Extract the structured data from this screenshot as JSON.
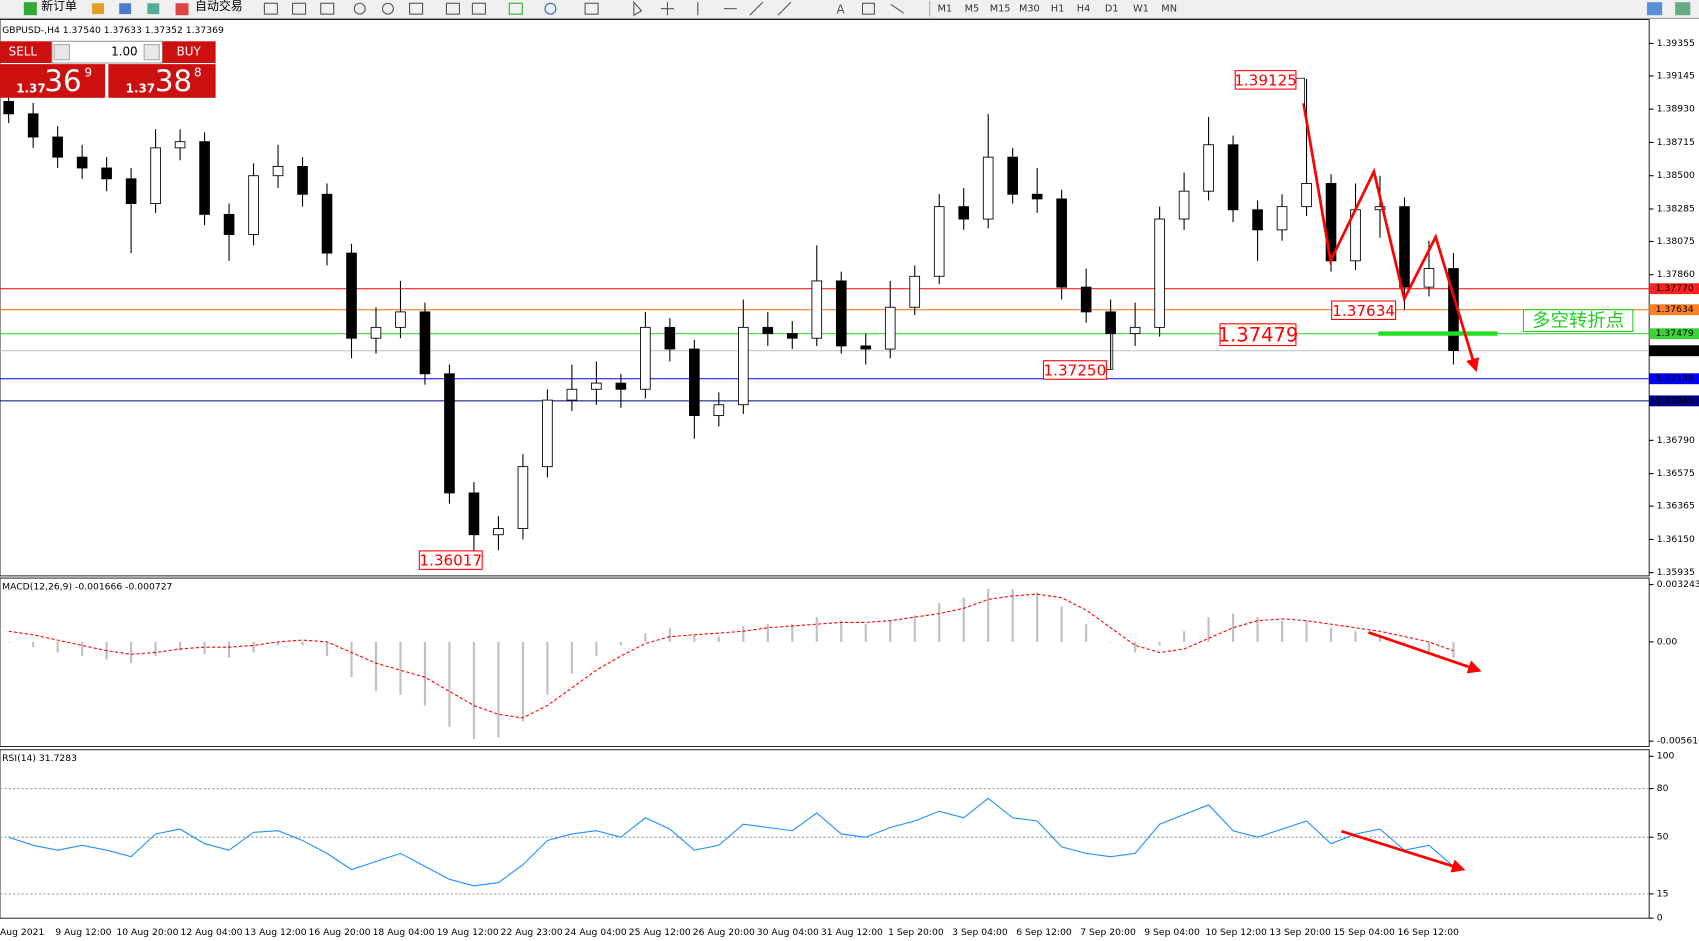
{
  "toolbar": {
    "new_order": "新订单",
    "auto_trading": "自动交易",
    "timeframes": [
      "M1",
      "M5",
      "M15",
      "M30",
      "H1",
      "H4",
      "D1",
      "W1",
      "MN"
    ]
  },
  "trade_panel": {
    "sell": "SELL",
    "lots": "1.00",
    "buy": "BUY",
    "sell_price": {
      "big": "1.37",
      "main": "36",
      "pip": "9"
    },
    "buy_price": {
      "big": "1.37",
      "main": "38",
      "pip": "8"
    }
  },
  "time_axis": [
    "Aug 2021",
    "9 Aug 12:00",
    "10 Aug 20:00",
    "12 Aug 04:00",
    "13 Aug 12:00",
    "16 Aug 20:00",
    "18 Aug 04:00",
    "19 Aug 12:00",
    "22 Aug 23:00",
    "24 Aug 04:00",
    "25 Aug 12:00",
    "26 Aug 20:00",
    "30 Aug 04:00",
    "31 Aug 12:00",
    "1 Sep 20:00",
    "3 Sep 04:00",
    "6 Sep 12:00",
    "7 Sep 20:00",
    "9 Sep 04:00",
    "10 Sep 12:00",
    "13 Sep 20:00",
    "15 Sep 04:00",
    "16 Sep 12:00"
  ],
  "chart_data": [
    {
      "type": "candlestick",
      "title": "GBPUSD-,H4  1.37540 1.37633 1.37352 1.37369",
      "candles": [
        [
          1.3898,
          1.3905,
          1.3884,
          1.389
        ],
        [
          1.389,
          1.3897,
          1.3868,
          1.3875
        ],
        [
          1.3875,
          1.3882,
          1.3855,
          1.3862
        ],
        [
          1.3862,
          1.387,
          1.3848,
          1.3855
        ],
        [
          1.3855,
          1.3862,
          1.384,
          1.3848
        ],
        [
          1.3848,
          1.3855,
          1.38,
          1.3832
        ],
        [
          1.3832,
          1.388,
          1.3826,
          1.3868
        ],
        [
          1.3868,
          1.388,
          1.386,
          1.3872
        ],
        [
          1.3872,
          1.3878,
          1.3818,
          1.3825
        ],
        [
          1.3825,
          1.3832,
          1.3795,
          1.3812
        ],
        [
          1.3812,
          1.3858,
          1.3805,
          1.385
        ],
        [
          1.385,
          1.387,
          1.3842,
          1.3856
        ],
        [
          1.3856,
          1.3862,
          1.383,
          1.3838
        ],
        [
          1.3838,
          1.3845,
          1.3792,
          1.38
        ],
        [
          1.38,
          1.3806,
          1.3732,
          1.3745
        ],
        [
          1.3745,
          1.3765,
          1.3735,
          1.3752
        ],
        [
          1.3752,
          1.3782,
          1.3745,
          1.3762
        ],
        [
          1.3762,
          1.3768,
          1.3715,
          1.3722
        ],
        [
          1.3722,
          1.3728,
          1.3638,
          1.3645
        ],
        [
          1.3645,
          1.3652,
          1.36017,
          1.3618
        ],
        [
          1.3618,
          1.363,
          1.3608,
          1.3622
        ],
        [
          1.3622,
          1.367,
          1.3615,
          1.3662
        ],
        [
          1.3662,
          1.3712,
          1.3655,
          1.3705
        ],
        [
          1.3705,
          1.3728,
          1.3698,
          1.3712
        ],
        [
          1.3712,
          1.373,
          1.3702,
          1.3716
        ],
        [
          1.3716,
          1.3722,
          1.37,
          1.3712
        ],
        [
          1.3712,
          1.3762,
          1.3706,
          1.3752
        ],
        [
          1.3752,
          1.3758,
          1.373,
          1.3738
        ],
        [
          1.3738,
          1.3744,
          1.368,
          1.3695
        ],
        [
          1.3695,
          1.371,
          1.3688,
          1.3702
        ],
        [
          1.3702,
          1.377,
          1.3696,
          1.3752
        ],
        [
          1.3752,
          1.3762,
          1.374,
          1.3748
        ],
        [
          1.3748,
          1.3756,
          1.3738,
          1.3745
        ],
        [
          1.3745,
          1.3805,
          1.374,
          1.3782
        ],
        [
          1.3782,
          1.3788,
          1.3735,
          1.374
        ],
        [
          1.374,
          1.3748,
          1.3728,
          1.3738
        ],
        [
          1.3738,
          1.3782,
          1.3732,
          1.3765
        ],
        [
          1.3765,
          1.3792,
          1.376,
          1.3785
        ],
        [
          1.3785,
          1.3838,
          1.378,
          1.383
        ],
        [
          1.383,
          1.3842,
          1.3815,
          1.3822
        ],
        [
          1.3822,
          1.389,
          1.3816,
          1.3862
        ],
        [
          1.3862,
          1.3868,
          1.3832,
          1.3838
        ],
        [
          1.3838,
          1.3855,
          1.3826,
          1.3835
        ],
        [
          1.3835,
          1.3841,
          1.377,
          1.3778
        ],
        [
          1.3778,
          1.379,
          1.3755,
          1.3762
        ],
        [
          1.3762,
          1.377,
          1.3725,
          1.3748
        ],
        [
          1.3748,
          1.3768,
          1.374,
          1.3752
        ],
        [
          1.3752,
          1.383,
          1.3746,
          1.3822
        ],
        [
          1.3822,
          1.3852,
          1.3815,
          1.384
        ],
        [
          1.384,
          1.3888,
          1.3834,
          1.387
        ],
        [
          1.387,
          1.3876,
          1.382,
          1.3828
        ],
        [
          1.3828,
          1.3834,
          1.3795,
          1.3815
        ],
        [
          1.3815,
          1.3838,
          1.3808,
          1.383
        ],
        [
          1.383,
          1.39125,
          1.3824,
          1.3845
        ],
        [
          1.3845,
          1.3851,
          1.3788,
          1.3795
        ],
        [
          1.3795,
          1.3845,
          1.3789,
          1.3828
        ],
        [
          1.3828,
          1.385,
          1.381,
          1.383
        ],
        [
          1.383,
          1.3836,
          1.37634,
          1.3778
        ],
        [
          1.3778,
          1.3808,
          1.3772,
          1.379
        ],
        [
          1.379,
          1.38,
          1.3728,
          1.3737
        ]
      ],
      "ylim": [
        1.35914,
        1.39509
      ],
      "yticks": [
        1.39355,
        1.39145,
        {
          "value": 1.3893,
          "label": "1.38930"
        },
        1.38715,
        {
          "value": 1.385,
          "label": "1.38500"
        },
        1.38285,
        1.38075,
        {
          "value": 1.3786,
          "label": "1.37860"
        },
        {
          "value": 1.3679,
          "label": "1.36790"
        },
        1.36575,
        1.36365,
        {
          "value": 1.3615,
          "label": "1.36150"
        },
        1.35935
      ],
      "levels": [
        {
          "value": 1.3777,
          "label": "1.37770",
          "color": "#ff2020",
          "tag_color": "#ff2020"
        },
        {
          "value": 1.37634,
          "label": "1.37634",
          "color": "#ff7f27",
          "tag_color": "#ff7f27"
        },
        {
          "value": 1.37479,
          "label": "1.37479",
          "color": "#3bd43b",
          "tag_color": "#3bd43b"
        },
        {
          "value": 1.37369,
          "label": "1.37369",
          "color": "#c0c0c0",
          "tag_color": "#000000"
        },
        {
          "value": 1.37188,
          "label": "1.37188",
          "color": "#0000ff",
          "tag_color": "#0000ff"
        },
        {
          "value": 1.37045,
          "label": "1.37045",
          "color": "#000080",
          "tag_color": "#000080"
        }
      ],
      "annotations": [
        "1.39125",
        "1.36017",
        "1.37250",
        "1.37479",
        "1.37634",
        "多空转折点"
      ]
    },
    {
      "type": "macd",
      "title": "MACD(12,26,9) -0.001666 -0.000727",
      "values": [
        0,
        -0.0003,
        -0.0006,
        -0.0008,
        -0.001,
        -0.0012,
        -0.0008,
        -0.0005,
        -0.0007,
        -0.0009,
        -0.0006,
        -0.0002,
        -0.0002,
        -0.0008,
        -0.002,
        -0.0028,
        -0.003,
        -0.0036,
        -0.0048,
        -0.0055,
        -0.0054,
        -0.0045,
        -0.003,
        -0.0018,
        -0.0008,
        -0.0002,
        0.0005,
        0.0008,
        0.0004,
        0.0003,
        0.0009,
        0.001,
        0.001,
        0.0014,
        0.0012,
        0.001,
        0.0012,
        0.0015,
        0.0022,
        0.0025,
        0.003,
        0.003,
        0.0028,
        0.002,
        0.001,
        0,
        -0.0006,
        -0.0002,
        0.0006,
        0.0014,
        0.0016,
        0.0014,
        0.0012,
        0.0012,
        0.0008,
        0.0006,
        0.0004,
        -0.0002,
        -0.0006,
        -0.0009
      ],
      "signal": [
        0.0006,
        0.0004,
        0.0001,
        -0.0002,
        -0.0005,
        -0.0007,
        -0.0006,
        -0.0004,
        -0.0003,
        -0.0003,
        -0.0002,
        0,
        0.0001,
        0,
        -0.0006,
        -0.0012,
        -0.0016,
        -0.002,
        -0.0028,
        -0.0036,
        -0.0041,
        -0.0043,
        -0.0036,
        -0.0026,
        -0.0016,
        -0.0008,
        -0.0001,
        0.0003,
        0.0004,
        0.0005,
        0.0006,
        0.0008,
        0.0009,
        0.001,
        0.0011,
        0.0011,
        0.0012,
        0.0014,
        0.0016,
        0.0019,
        0.0024,
        0.0026,
        0.0027,
        0.0025,
        0.0018,
        0.0008,
        -0.0002,
        -0.0006,
        -0.0004,
        0.0002,
        0.0008,
        0.0012,
        0.0013,
        0.0012,
        0.001,
        0.0008,
        0.0006,
        0.0003,
        0,
        -0.0005
      ],
      "color": "#c0c0c0",
      "signal_color": "#ff0000",
      "ylim": [
        -0.00592,
        0.00361
      ],
      "yticks": [
        0.003243,
        {
          "value": 0,
          "label": "0.00"
        },
        -0.005616
      ]
    },
    {
      "type": "rsi",
      "title": "RSI(14) 31.7283",
      "values": [
        50,
        45,
        42,
        45,
        42,
        38,
        52,
        55,
        46,
        42,
        53,
        54,
        48,
        40,
        30,
        35,
        40,
        32,
        24,
        20,
        22,
        33,
        48,
        52,
        54,
        50,
        62,
        55,
        42,
        45,
        58,
        56,
        54,
        65,
        52,
        50,
        56,
        60,
        66,
        62,
        74,
        62,
        60,
        44,
        40,
        38,
        40,
        58,
        64,
        70,
        54,
        50,
        55,
        60,
        46,
        52,
        55,
        42,
        45,
        32
      ],
      "color": "#1e90ff",
      "ylim": [
        0,
        104
      ],
      "yticks": [
        100,
        80,
        50,
        15,
        0
      ],
      "levels": [
        80,
        50,
        15
      ]
    }
  ]
}
